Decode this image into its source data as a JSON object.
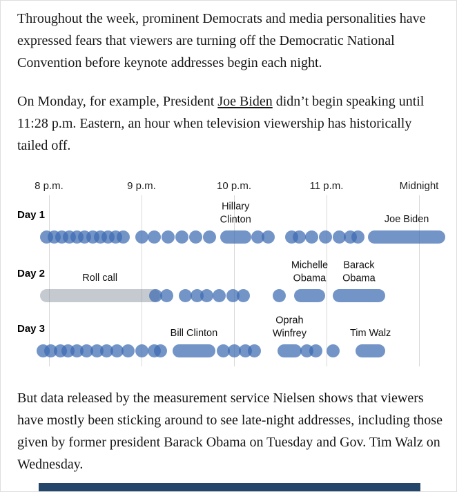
{
  "article": {
    "p1": "Throughout the week, prominent Democrats and media personalities have expressed fears that viewers are turning off the Democratic National Convention before keynote addresses begin each night.",
    "p2_before": "On Monday, for example, President ",
    "p2_link": "Joe Biden",
    "p2_after": " didn’t begin speaking until 11:28 p.m. Eastern, an hour when television viewership has historically tailed off.",
    "p3": "But data released by the measurement service Nielsen shows that viewers have mostly been sticking around to see late-night addresses, including those given by former president Barack Obama on Tuesday and Gov. Tim Walz on Wednesday."
  },
  "chart_data": {
    "type": "timeline",
    "title": "",
    "x_axis": {
      "tick_labels": [
        "8 p.m.",
        "9 p.m.",
        "10 p.m.",
        "11 p.m.",
        "Midnight"
      ],
      "tick_minutes": [
        0,
        60,
        120,
        180,
        240
      ],
      "unit": "minutes after 8 p.m. Eastern",
      "range_minutes": [
        -8,
        258
      ],
      "grid": "vertical hourly gridlines"
    },
    "legend_position": "none",
    "colors": {
      "speech_blue": "rgba(61,107,177,0.72)",
      "roll_call_gray": "rgba(125,137,150,0.45)",
      "gridline": "#d8d8d8",
      "bottom_bar_navy": "#24466b"
    },
    "rows": [
      {
        "label": "Day 1",
        "events": [
          {
            "start": -6,
            "end": 2
          },
          {
            "start": -1,
            "end": 7
          },
          {
            "start": 4,
            "end": 12
          },
          {
            "start": 9,
            "end": 17
          },
          {
            "start": 14,
            "end": 22
          },
          {
            "start": 19,
            "end": 27
          },
          {
            "start": 24,
            "end": 32
          },
          {
            "start": 29,
            "end": 37
          },
          {
            "start": 34,
            "end": 42
          },
          {
            "start": 39,
            "end": 47
          },
          {
            "start": 44,
            "end": 52
          },
          {
            "start": 56,
            "end": 64
          },
          {
            "start": 64,
            "end": 72
          },
          {
            "start": 73,
            "end": 81
          },
          {
            "start": 82,
            "end": 90
          },
          {
            "start": 91,
            "end": 99
          },
          {
            "start": 100,
            "end": 108
          },
          {
            "start": 111,
            "end": 131,
            "label": "Hillary\nClinton"
          },
          {
            "start": 131,
            "end": 139
          },
          {
            "start": 138,
            "end": 146
          },
          {
            "start": 153,
            "end": 161
          },
          {
            "start": 158,
            "end": 166
          },
          {
            "start": 166,
            "end": 174
          },
          {
            "start": 175,
            "end": 183
          },
          {
            "start": 184,
            "end": 192
          },
          {
            "start": 191,
            "end": 199
          },
          {
            "start": 196,
            "end": 204
          },
          {
            "start": 207,
            "end": 257,
            "label": "Joe Biden"
          }
        ]
      },
      {
        "label": "Day 2",
        "events": [
          {
            "start": -6,
            "end": 72,
            "color": "gray",
            "label": "Roll call"
          },
          {
            "start": 65,
            "end": 73
          },
          {
            "start": 72,
            "end": 80
          },
          {
            "start": 84,
            "end": 92
          },
          {
            "start": 92,
            "end": 100
          },
          {
            "start": 98,
            "end": 106
          },
          {
            "start": 106,
            "end": 114
          },
          {
            "start": 115,
            "end": 123
          },
          {
            "start": 122,
            "end": 130
          },
          {
            "start": 145,
            "end": 153
          },
          {
            "start": 159,
            "end": 179,
            "label": "Michelle\nObama"
          },
          {
            "start": 184,
            "end": 218,
            "label": "Barack\nObama"
          }
        ]
      },
      {
        "label": "Day 3",
        "events": [
          {
            "start": -8,
            "end": 0
          },
          {
            "start": -3,
            "end": 5
          },
          {
            "start": 3,
            "end": 11
          },
          {
            "start": 8,
            "end": 16
          },
          {
            "start": 14,
            "end": 22
          },
          {
            "start": 20,
            "end": 28
          },
          {
            "start": 27,
            "end": 35
          },
          {
            "start": 33,
            "end": 41
          },
          {
            "start": 40,
            "end": 48
          },
          {
            "start": 47,
            "end": 55
          },
          {
            "start": 56,
            "end": 64
          },
          {
            "start": 64,
            "end": 72
          },
          {
            "start": 68,
            "end": 76
          },
          {
            "start": 80,
            "end": 108,
            "label": "Bill Clinton"
          },
          {
            "start": 109,
            "end": 117
          },
          {
            "start": 116,
            "end": 124
          },
          {
            "start": 123,
            "end": 131
          },
          {
            "start": 129,
            "end": 137
          },
          {
            "start": 148,
            "end": 164,
            "label": "Oprah\nWinfrey"
          },
          {
            "start": 163,
            "end": 171
          },
          {
            "start": 169,
            "end": 177
          },
          {
            "start": 180,
            "end": 188
          },
          {
            "start": 199,
            "end": 218,
            "label": "Tim Walz"
          }
        ]
      }
    ]
  }
}
